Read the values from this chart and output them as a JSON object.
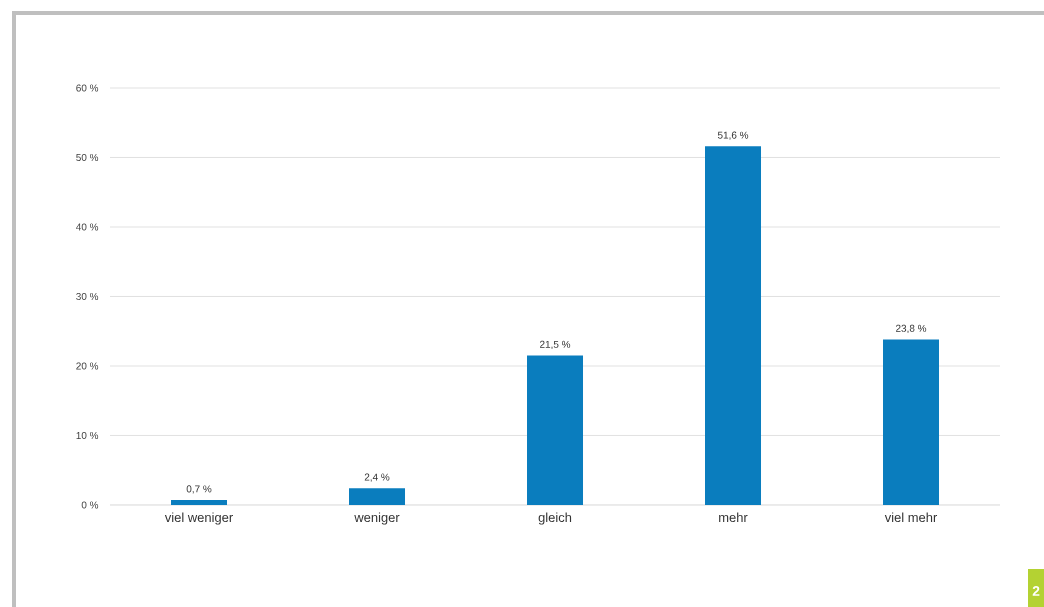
{
  "chart_data": {
    "type": "bar",
    "categories": [
      "viel weniger",
      "weniger",
      "gleich",
      "mehr",
      "viel mehr"
    ],
    "values": [
      0.7,
      2.4,
      21.5,
      51.6,
      23.8
    ],
    "value_labels": [
      "0,7 %",
      "2,4 %",
      "21,5 %",
      "51,6 %",
      "23,8 %"
    ],
    "color": "#0a7dbe",
    "ylim": [
      0,
      60
    ],
    "yticks": [
      {
        "value": 0,
        "label": "0 %"
      },
      {
        "value": 10,
        "label": "10 %"
      },
      {
        "value": 20,
        "label": "20 %"
      },
      {
        "value": 30,
        "label": "30 %"
      },
      {
        "value": 40,
        "label": "40 %"
      },
      {
        "value": 50,
        "label": "50 %"
      },
      {
        "value": 60,
        "label": "60 %"
      }
    ],
    "grid": "y",
    "annotations": [
      "2"
    ]
  }
}
